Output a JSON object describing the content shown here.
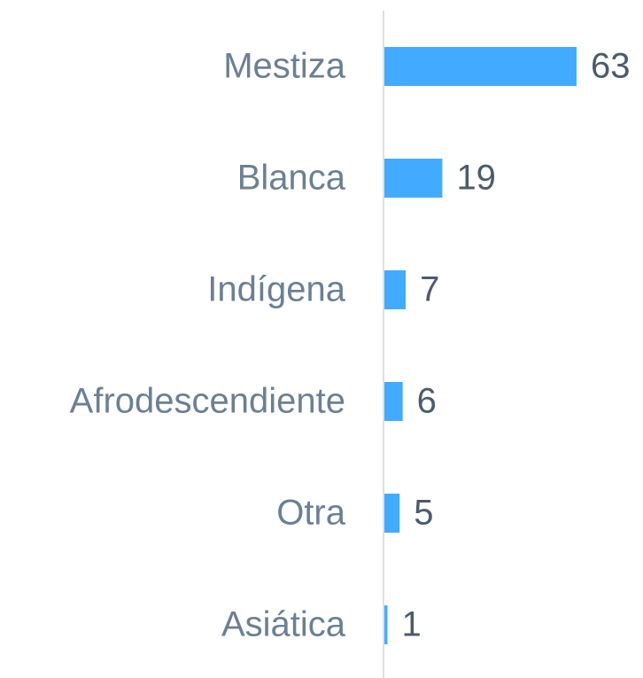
{
  "chart_data": {
    "type": "bar",
    "orientation": "horizontal",
    "categories": [
      "Mestiza",
      "Blanca",
      "Indígena",
      "Afrodescendiente",
      "Otra",
      "Asiática"
    ],
    "values": [
      63,
      19,
      7,
      6,
      5,
      1
    ],
    "color": "#42abff"
  }
}
